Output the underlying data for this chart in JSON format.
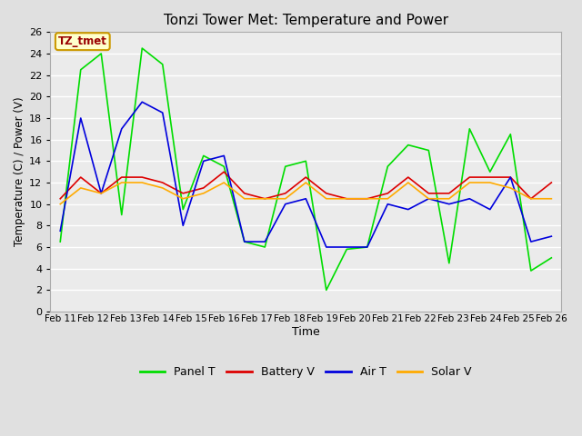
{
  "title": "Tonzi Tower Met: Temperature and Power",
  "xlabel": "Time",
  "ylabel": "Temperature (C) / Power (V)",
  "annotation": "TZ_tmet",
  "xlabels": [
    "Feb 11",
    "Feb 12",
    "Feb 13",
    "Feb 14",
    "Feb 15",
    "Feb 16",
    "Feb 17",
    "Feb 18",
    "Feb 19",
    "Feb 20",
    "Feb 21",
    "Feb 22",
    "Feb 23",
    "Feb 24",
    "Feb 25",
    "Feb 26"
  ],
  "ylim": [
    0,
    26
  ],
  "yticks": [
    0,
    2,
    4,
    6,
    8,
    10,
    12,
    14,
    16,
    18,
    20,
    22,
    24,
    26
  ],
  "panel_t": [
    6.5,
    22.5,
    24.0,
    9.0,
    24.5,
    23.0,
    9.5,
    14.5,
    13.5,
    6.5,
    6.0,
    13.5,
    14.0,
    2.0,
    5.8,
    6.0,
    13.5,
    15.5,
    15.0,
    4.5,
    17.0,
    13.0,
    16.5,
    3.8,
    5.0
  ],
  "battery_v": [
    10.5,
    12.5,
    11.0,
    12.5,
    12.5,
    12.0,
    11.0,
    11.5,
    13.0,
    11.0,
    10.5,
    11.0,
    12.5,
    11.0,
    10.5,
    10.5,
    11.0,
    12.5,
    11.0,
    11.0,
    12.5,
    12.5,
    12.5,
    10.5,
    12.0
  ],
  "air_t": [
    7.5,
    18.0,
    11.0,
    17.0,
    19.5,
    18.5,
    8.0,
    14.0,
    14.5,
    6.5,
    6.5,
    10.0,
    10.5,
    6.0,
    6.0,
    6.0,
    10.0,
    9.5,
    10.5,
    10.0,
    10.5,
    9.5,
    12.5,
    6.5,
    7.0
  ],
  "solar_v": [
    10.0,
    11.5,
    11.0,
    12.0,
    12.0,
    11.5,
    10.5,
    11.0,
    12.0,
    10.5,
    10.5,
    10.5,
    12.0,
    10.5,
    10.5,
    10.5,
    10.5,
    12.0,
    10.5,
    10.5,
    12.0,
    12.0,
    11.5,
    10.5,
    10.5
  ],
  "panel_color": "#00dd00",
  "battery_color": "#dd0000",
  "air_color": "#0000dd",
  "solar_color": "#ffaa00",
  "bg_color": "#e0e0e0",
  "plot_bg": "#ebebeb",
  "grid_color": "#ffffff",
  "annotation_bg": "#ffffcc",
  "annotation_border": "#cc9900",
  "annotation_fg": "#990000"
}
